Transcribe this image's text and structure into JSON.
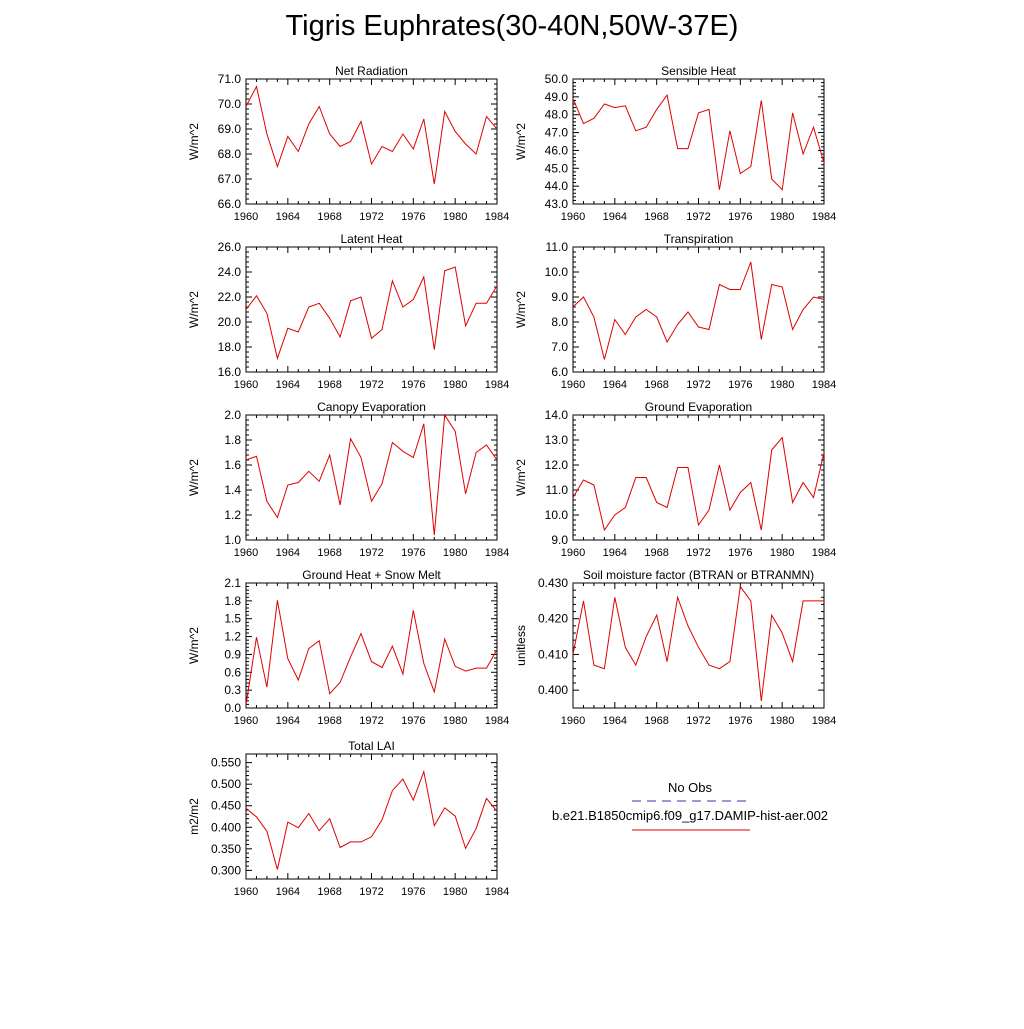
{
  "title": "Tigris Euphrates(30-40N,50W-37E)",
  "colors": {
    "model": "#e00000",
    "obs": "#3333aa",
    "axis": "#000000"
  },
  "chart_data": [
    {
      "type": "line",
      "title": "Net Radiation",
      "ylabel": "W/m^2",
      "xlim": [
        1960,
        1984
      ],
      "ylim": [
        66.0,
        71.0
      ],
      "xticks": [
        1960,
        1964,
        1968,
        1972,
        1976,
        1980,
        1984
      ],
      "yticks": [
        66.0,
        67.0,
        68.0,
        69.0,
        70.0,
        71.0
      ],
      "ytick_labels": [
        "66.0",
        "67.0",
        "68.0",
        "69.0",
        "70.0",
        "71.0"
      ],
      "x": [
        1960,
        1961,
        1962,
        1963,
        1964,
        1965,
        1966,
        1967,
        1968,
        1969,
        1970,
        1971,
        1972,
        1973,
        1974,
        1975,
        1976,
        1977,
        1978,
        1979,
        1980,
        1981,
        1982,
        1983,
        1984
      ],
      "series": [
        {
          "name": "b.e21.B1850cmip6.f09_g17.DAMIP-hist-aer.002",
          "values": [
            69.9,
            70.7,
            68.8,
            67.5,
            68.7,
            68.1,
            69.2,
            69.9,
            68.8,
            68.3,
            68.5,
            69.3,
            67.6,
            68.3,
            68.1,
            68.8,
            68.2,
            69.4,
            66.8,
            69.7,
            68.9,
            68.4,
            68.0,
            69.5,
            69.0
          ]
        }
      ]
    },
    {
      "type": "line",
      "title": "Sensible Heat",
      "ylabel": "W/m^2",
      "xlim": [
        1960,
        1984
      ],
      "ylim": [
        43.0,
        50.0
      ],
      "xticks": [
        1960,
        1964,
        1968,
        1972,
        1976,
        1980,
        1984
      ],
      "yticks": [
        43.0,
        44.0,
        45.0,
        46.0,
        47.0,
        48.0,
        49.0,
        50.0
      ],
      "ytick_labels": [
        "43.0",
        "44.0",
        "45.0",
        "46.0",
        "47.0",
        "48.0",
        "49.0",
        "50.0"
      ],
      "x": [
        1960,
        1961,
        1962,
        1963,
        1964,
        1965,
        1966,
        1967,
        1968,
        1969,
        1970,
        1971,
        1972,
        1973,
        1974,
        1975,
        1976,
        1977,
        1978,
        1979,
        1980,
        1981,
        1982,
        1983,
        1984
      ],
      "series": [
        {
          "name": "b.e21.B1850cmip6.f09_g17.DAMIP-hist-aer.002",
          "values": [
            48.9,
            47.5,
            47.8,
            48.6,
            48.4,
            48.5,
            47.1,
            47.3,
            48.3,
            49.1,
            46.1,
            46.1,
            48.1,
            48.3,
            43.8,
            47.1,
            44.7,
            45.1,
            48.8,
            44.4,
            43.8,
            48.1,
            45.8,
            47.3,
            45.3
          ]
        }
      ]
    },
    {
      "type": "line",
      "title": "Latent Heat",
      "ylabel": "W/m^2",
      "xlim": [
        1960,
        1984
      ],
      "ylim": [
        16.0,
        26.0
      ],
      "xticks": [
        1960,
        1964,
        1968,
        1972,
        1976,
        1980,
        1984
      ],
      "yticks": [
        16.0,
        18.0,
        20.0,
        22.0,
        24.0,
        26.0
      ],
      "ytick_labels": [
        "16.0",
        "18.0",
        "20.0",
        "22.0",
        "24.0",
        "26.0"
      ],
      "x": [
        1960,
        1961,
        1962,
        1963,
        1964,
        1965,
        1966,
        1967,
        1968,
        1969,
        1970,
        1971,
        1972,
        1973,
        1974,
        1975,
        1976,
        1977,
        1978,
        1979,
        1980,
        1981,
        1982,
        1983,
        1984
      ],
      "series": [
        {
          "name": "b.e21.B1850cmip6.f09_g17.DAMIP-hist-aer.002",
          "values": [
            21.0,
            22.1,
            20.7,
            17.1,
            19.5,
            19.2,
            21.2,
            21.5,
            20.3,
            18.8,
            21.7,
            22.0,
            18.7,
            19.4,
            23.3,
            21.2,
            21.8,
            23.6,
            17.8,
            24.1,
            24.4,
            19.7,
            21.5,
            21.5,
            22.9
          ]
        }
      ]
    },
    {
      "type": "line",
      "title": "Transpiration",
      "ylabel": "W/m^2",
      "xlim": [
        1960,
        1984
      ],
      "ylim": [
        6.0,
        11.0
      ],
      "xticks": [
        1960,
        1964,
        1968,
        1972,
        1976,
        1980,
        1984
      ],
      "yticks": [
        6.0,
        7.0,
        8.0,
        9.0,
        10.0,
        11.0
      ],
      "ytick_labels": [
        "6.0",
        "7.0",
        "8.0",
        "9.0",
        "10.0",
        "11.0"
      ],
      "x": [
        1960,
        1961,
        1962,
        1963,
        1964,
        1965,
        1966,
        1967,
        1968,
        1969,
        1970,
        1971,
        1972,
        1973,
        1974,
        1975,
        1976,
        1977,
        1978,
        1979,
        1980,
        1981,
        1982,
        1983,
        1984
      ],
      "series": [
        {
          "name": "b.e21.B1850cmip6.f09_g17.DAMIP-hist-aer.002",
          "values": [
            8.6,
            9.0,
            8.2,
            6.5,
            8.1,
            7.5,
            8.2,
            8.5,
            8.2,
            7.2,
            7.9,
            8.4,
            7.8,
            7.7,
            9.5,
            9.3,
            9.3,
            10.4,
            7.3,
            9.5,
            9.4,
            7.7,
            8.5,
            9.0,
            8.9
          ]
        }
      ]
    },
    {
      "type": "line",
      "title": "Canopy Evaporation",
      "ylabel": "W/m^2",
      "xlim": [
        1960,
        1984
      ],
      "ylim": [
        1.0,
        2.0
      ],
      "xticks": [
        1960,
        1964,
        1968,
        1972,
        1976,
        1980,
        1984
      ],
      "yticks": [
        1.0,
        1.2,
        1.4,
        1.6,
        1.8,
        2.0
      ],
      "ytick_labels": [
        "1.0",
        "1.2",
        "1.4",
        "1.6",
        "1.8",
        "2.0"
      ],
      "x": [
        1960,
        1961,
        1962,
        1963,
        1964,
        1965,
        1966,
        1967,
        1968,
        1969,
        1970,
        1971,
        1972,
        1973,
        1974,
        1975,
        1976,
        1977,
        1978,
        1979,
        1980,
        1981,
        1982,
        1983,
        1984
      ],
      "series": [
        {
          "name": "b.e21.B1850cmip6.f09_g17.DAMIP-hist-aer.002",
          "values": [
            1.64,
            1.67,
            1.31,
            1.18,
            1.44,
            1.46,
            1.55,
            1.47,
            1.68,
            1.28,
            1.81,
            1.66,
            1.31,
            1.45,
            1.78,
            1.71,
            1.66,
            1.93,
            1.04,
            2.0,
            1.87,
            1.37,
            1.7,
            1.76,
            1.64
          ]
        }
      ]
    },
    {
      "type": "line",
      "title": "Ground Evaporation",
      "ylabel": "W/m^2",
      "xlim": [
        1960,
        1984
      ],
      "ylim": [
        9.0,
        14.0
      ],
      "xticks": [
        1960,
        1964,
        1968,
        1972,
        1976,
        1980,
        1984
      ],
      "yticks": [
        9.0,
        10.0,
        11.0,
        12.0,
        13.0,
        14.0
      ],
      "ytick_labels": [
        "9.0",
        "10.0",
        "11.0",
        "12.0",
        "13.0",
        "14.0"
      ],
      "x": [
        1960,
        1961,
        1962,
        1963,
        1964,
        1965,
        1966,
        1967,
        1968,
        1969,
        1970,
        1971,
        1972,
        1973,
        1974,
        1975,
        1976,
        1977,
        1978,
        1979,
        1980,
        1981,
        1982,
        1983,
        1984
      ],
      "series": [
        {
          "name": "b.e21.B1850cmip6.f09_g17.DAMIP-hist-aer.002",
          "values": [
            10.7,
            11.4,
            11.2,
            9.4,
            10.0,
            10.3,
            11.5,
            11.5,
            10.5,
            10.3,
            11.9,
            11.9,
            9.6,
            10.2,
            12.0,
            10.2,
            10.9,
            11.3,
            9.4,
            12.6,
            13.1,
            10.5,
            11.3,
            10.7,
            12.5
          ]
        }
      ]
    },
    {
      "type": "line",
      "title": "Ground Heat + Snow Melt",
      "ylabel": "W/m^2",
      "xlim": [
        1960,
        1984
      ],
      "ylim": [
        0.0,
        2.1
      ],
      "xticks": [
        1960,
        1964,
        1968,
        1972,
        1976,
        1980,
        1984
      ],
      "yticks": [
        0.0,
        0.3,
        0.6,
        0.9,
        1.2,
        1.5,
        1.8,
        2.1
      ],
      "ytick_labels": [
        "0.0",
        "0.3",
        "0.6",
        "0.9",
        "1.2",
        "1.5",
        "1.8",
        "2.1"
      ],
      "x": [
        1960,
        1961,
        1962,
        1963,
        1964,
        1965,
        1966,
        1967,
        1968,
        1969,
        1970,
        1971,
        1972,
        1973,
        1974,
        1975,
        1976,
        1977,
        1978,
        1979,
        1980,
        1981,
        1982,
        1983,
        1984
      ],
      "series": [
        {
          "name": "b.e21.B1850cmip6.f09_g17.DAMIP-hist-aer.002",
          "values": [
            0.05,
            1.19,
            0.35,
            1.81,
            0.83,
            0.47,
            1.0,
            1.13,
            0.24,
            0.43,
            0.86,
            1.25,
            0.78,
            0.68,
            1.04,
            0.57,
            1.64,
            0.75,
            0.27,
            1.16,
            0.7,
            0.62,
            0.67,
            0.67,
            0.98
          ]
        }
      ]
    },
    {
      "type": "line",
      "title": "Soil moisture factor (BTRAN or BTRANMN)",
      "ylabel": "unitless",
      "xlim": [
        1960,
        1984
      ],
      "ylim": [
        0.395,
        0.43
      ],
      "xticks": [
        1960,
        1964,
        1968,
        1972,
        1976,
        1980,
        1984
      ],
      "yticks": [
        0.4,
        0.41,
        0.42,
        0.43
      ],
      "ytick_labels": [
        "0.400",
        "0.410",
        "0.420",
        "0.430"
      ],
      "x": [
        1960,
        1961,
        1962,
        1963,
        1964,
        1965,
        1966,
        1967,
        1968,
        1969,
        1970,
        1971,
        1972,
        1973,
        1974,
        1975,
        1976,
        1977,
        1978,
        1979,
        1980,
        1981,
        1982,
        1983,
        1984
      ],
      "series": [
        {
          "name": "b.e21.B1850cmip6.f09_g17.DAMIP-hist-aer.002",
          "values": [
            0.41,
            0.425,
            0.407,
            0.406,
            0.426,
            0.412,
            0.407,
            0.415,
            0.421,
            0.408,
            0.426,
            0.418,
            0.412,
            0.407,
            0.406,
            0.408,
            0.429,
            0.425,
            0.397,
            0.421,
            0.416,
            0.408,
            0.425,
            0.425,
            0.425
          ]
        }
      ]
    },
    {
      "type": "line",
      "title": "Total LAI",
      "ylabel": "m2/m2",
      "xlim": [
        1960,
        1984
      ],
      "ylim": [
        0.28,
        0.57
      ],
      "xticks": [
        1960,
        1964,
        1968,
        1972,
        1976,
        1980,
        1984
      ],
      "yticks": [
        0.3,
        0.35,
        0.4,
        0.45,
        0.5,
        0.55
      ],
      "ytick_labels": [
        "0.300",
        "0.350",
        "0.400",
        "0.450",
        "0.500",
        "0.550"
      ],
      "x": [
        1960,
        1961,
        1962,
        1963,
        1964,
        1965,
        1966,
        1967,
        1968,
        1969,
        1970,
        1971,
        1972,
        1973,
        1974,
        1975,
        1976,
        1977,
        1978,
        1979,
        1980,
        1981,
        1982,
        1983,
        1984
      ],
      "series": [
        {
          "name": "b.e21.B1850cmip6.f09_g17.DAMIP-hist-aer.002",
          "values": [
            0.444,
            0.424,
            0.391,
            0.302,
            0.412,
            0.399,
            0.432,
            0.392,
            0.42,
            0.353,
            0.366,
            0.366,
            0.378,
            0.417,
            0.485,
            0.512,
            0.463,
            0.529,
            0.404,
            0.445,
            0.426,
            0.351,
            0.397,
            0.467,
            0.437
          ]
        }
      ]
    }
  ],
  "legend": {
    "obs_label": "No Obs",
    "model_label": "b.e21.B1850cmip6.f09_g17.DAMIP-hist-aer.002"
  }
}
